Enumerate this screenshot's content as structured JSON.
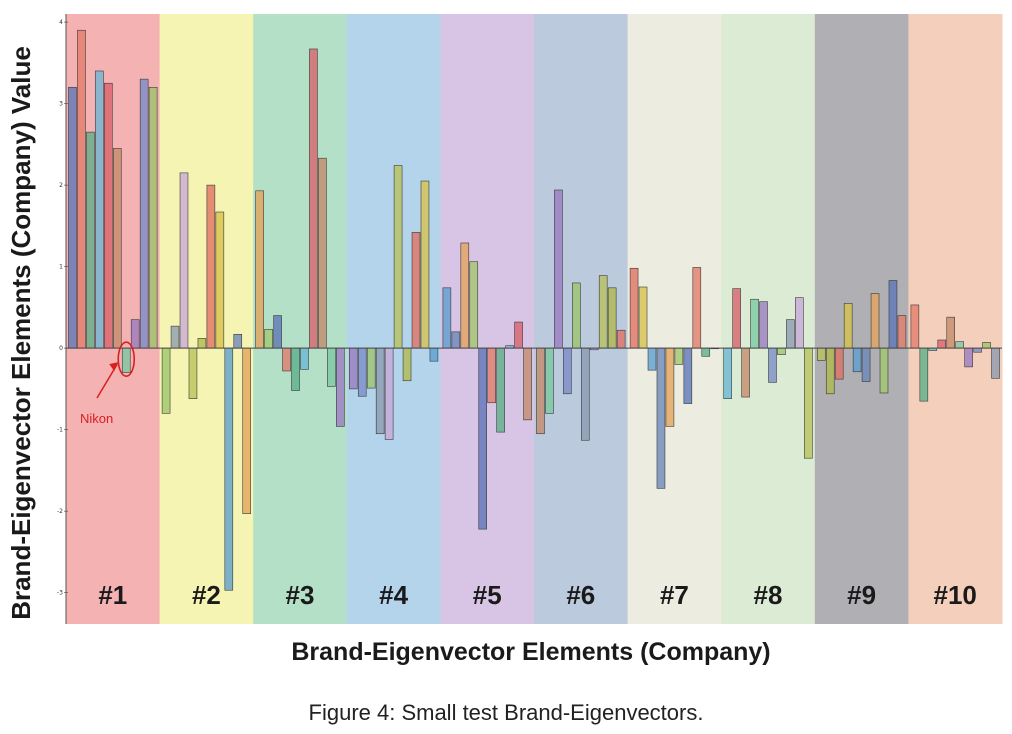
{
  "caption": "Figure 4: Small test Brand-Eigenvectors.",
  "annotation": {
    "text": "Nikon",
    "color": "#d82020"
  },
  "chart_data": {
    "type": "bar",
    "xlabel": "Brand-Eigenvector  Elements (Company)",
    "ylabel": "Brand-Eigenvector Elements (Company) Value",
    "ylim": [
      -3.2,
      4.05
    ],
    "yticks": [
      4,
      3,
      2,
      1,
      0,
      -1,
      -2,
      -3
    ],
    "grid": false,
    "groups": [
      {
        "label": "#1",
        "bg": "#f4b2b2",
        "values": [
          3.2,
          3.9,
          2.65,
          3.4,
          3.25,
          2.45,
          -0.3,
          0.35,
          3.3,
          3.2
        ]
      },
      {
        "label": "#2",
        "bg": "#f6f4b2",
        "values": [
          -0.8,
          0.27,
          2.15,
          -0.62,
          0.12,
          2.0,
          1.67,
          -2.97,
          0.17,
          -2.03
        ]
      },
      {
        "label": "#3",
        "bg": "#b4e0c8",
        "values": [
          1.93,
          0.23,
          0.4,
          -0.28,
          -0.52,
          -0.26,
          3.67,
          2.33,
          -0.47,
          -0.96
        ]
      },
      {
        "label": "#4",
        "bg": "#b4d4ec",
        "values": [
          -0.5,
          -0.59,
          -0.49,
          -1.05,
          -1.12,
          2.24,
          -0.4,
          1.42,
          2.05,
          -0.16
        ]
      },
      {
        "label": "#5",
        "bg": "#d8c4e4",
        "values": [
          0.74,
          0.2,
          1.29,
          1.06,
          -2.22,
          -0.67,
          -1.03,
          0.03,
          0.32,
          -0.88
        ]
      },
      {
        "label": "#6",
        "bg": "#bccade",
        "values": [
          -1.05,
          -0.8,
          1.94,
          -0.56,
          0.8,
          -1.13,
          -0.02,
          0.89,
          0.74,
          0.22
        ]
      },
      {
        "label": "#7",
        "bg": "#ecece0",
        "values": [
          0.98,
          0.75,
          -0.27,
          -1.72,
          -0.96,
          -0.2,
          -0.68,
          0.99,
          -0.1,
          0.0
        ]
      },
      {
        "label": "#8",
        "bg": "#dcecd4",
        "values": [
          -0.62,
          0.73,
          -0.6,
          0.6,
          0.57,
          -0.42,
          -0.08,
          0.35,
          0.62,
          -1.35
        ]
      },
      {
        "label": "#9",
        "bg": "#b0b0b4",
        "values": [
          -0.15,
          -0.56,
          -0.38,
          0.55,
          -0.29,
          -0.41,
          0.67,
          -0.55,
          0.83,
          0.4
        ]
      },
      {
        "label": "#10",
        "bg": "#f4d0bc",
        "values": [
          0.53,
          -0.65,
          -0.03,
          0.1,
          0.38,
          0.08,
          -0.23,
          -0.05,
          0.07,
          -0.37
        ]
      }
    ],
    "bar_colors": [
      "#5b74b8",
      "#6ab6d6",
      "#7ac9a0",
      "#9bc46a",
      "#b8c25a",
      "#d6c14a",
      "#e3a35a",
      "#e37b6a",
      "#d8606a",
      "#9a7ac2",
      "#8a9ab0",
      "#b0b84a",
      "#5b9ed0",
      "#a2c86c",
      "#5ab088",
      "#c48a6a",
      "#7a8ac8",
      "#c8a8d8",
      "#e07060",
      "#6a86b8"
    ]
  }
}
